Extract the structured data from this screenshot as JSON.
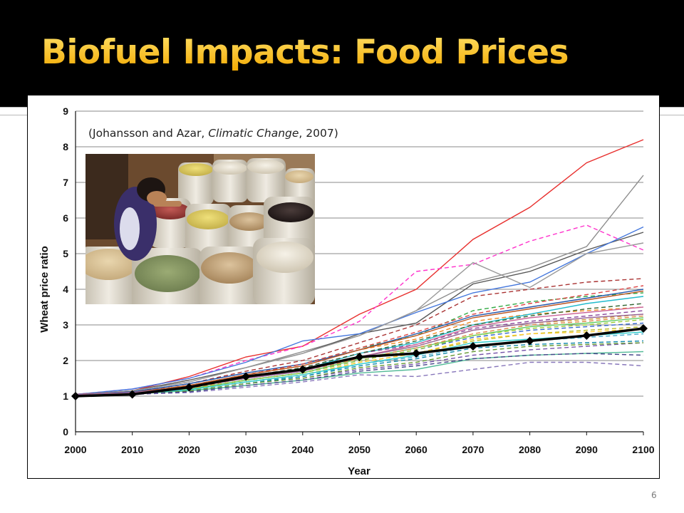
{
  "slide": {
    "title": "Biofuel Impacts: Food Prices",
    "page_number": "6",
    "citation": {
      "open": "(Johansson and Azar, ",
      "journal": "Climatic Change",
      "close": ", 2007)"
    },
    "photo_icon": "market-vendor-with-grain-sacks-photo",
    "colors": {
      "title": "#f5b800",
      "title_bar": "#000000"
    }
  },
  "chart_data": {
    "type": "line",
    "xlabel": "Year",
    "ylabel": "Wheat price ratio",
    "x": [
      2000,
      2010,
      2020,
      2030,
      2040,
      2050,
      2060,
      2070,
      2080,
      2090,
      2100
    ],
    "ylim": [
      0,
      9
    ],
    "yticks": [
      0,
      1,
      2,
      3,
      4,
      5,
      6,
      7,
      8,
      9
    ],
    "grid": true,
    "highlight_series": {
      "style": "thick black line with diamond markers",
      "values": [
        1.0,
        1.05,
        1.25,
        1.55,
        1.75,
        2.1,
        2.2,
        2.4,
        2.55,
        2.7,
        2.9
      ]
    },
    "series": [
      {
        "color": "#e8302e",
        "dash": false,
        "values": [
          1.05,
          1.15,
          1.55,
          2.1,
          2.4,
          3.3,
          4.0,
          5.4,
          6.3,
          7.55,
          8.2
        ]
      },
      {
        "color": "#8c8c8c",
        "dash": false,
        "values": [
          1.05,
          1.15,
          1.4,
          1.8,
          2.25,
          2.7,
          3.4,
          4.2,
          4.6,
          5.2,
          7.2
        ]
      },
      {
        "color": "#ff33cc",
        "dash": true,
        "values": [
          1.05,
          1.2,
          1.5,
          2.0,
          2.4,
          3.1,
          4.5,
          4.7,
          5.35,
          5.8,
          5.1
        ]
      },
      {
        "color": "#555555",
        "dash": false,
        "values": [
          1.05,
          1.15,
          1.45,
          1.8,
          2.2,
          2.75,
          3.05,
          4.15,
          4.5,
          5.1,
          5.6
        ]
      },
      {
        "color": "#4477dd",
        "dash": false,
        "values": [
          1.05,
          1.2,
          1.5,
          1.95,
          2.55,
          2.75,
          3.35,
          3.9,
          4.2,
          5.0,
          5.75
        ]
      },
      {
        "color": "#999999",
        "dash": false,
        "values": [
          1.05,
          1.15,
          1.4,
          1.8,
          2.2,
          2.7,
          3.4,
          4.75,
          4.05,
          5.0,
          5.3
        ]
      },
      {
        "color": "#aa3333",
        "dash": true,
        "values": [
          1.05,
          1.12,
          1.35,
          1.7,
          2.0,
          2.5,
          3.0,
          3.8,
          4.0,
          4.2,
          4.3
        ]
      },
      {
        "color": "#33aa44",
        "dash": true,
        "values": [
          1.05,
          1.1,
          1.3,
          1.6,
          1.9,
          2.35,
          2.7,
          3.4,
          3.65,
          3.8,
          3.9
        ]
      },
      {
        "color": "#2255aa",
        "dash": false,
        "values": [
          1.05,
          1.12,
          1.35,
          1.65,
          1.9,
          2.3,
          2.75,
          3.25,
          3.5,
          3.75,
          4.0
        ]
      },
      {
        "color": "#ee8822",
        "dash": true,
        "values": [
          1.05,
          1.1,
          1.3,
          1.6,
          1.85,
          2.3,
          2.6,
          3.1,
          3.3,
          3.4,
          3.5
        ]
      },
      {
        "color": "#22bbcc",
        "dash": false,
        "values": [
          1.05,
          1.1,
          1.25,
          1.55,
          1.75,
          2.2,
          2.5,
          3.0,
          3.3,
          3.6,
          3.8
        ]
      },
      {
        "color": "#884499",
        "dash": true,
        "values": [
          1.05,
          1.1,
          1.25,
          1.55,
          1.8,
          2.2,
          2.45,
          2.9,
          3.1,
          3.25,
          3.4
        ]
      },
      {
        "color": "#cc9933",
        "dash": true,
        "values": [
          1.05,
          1.1,
          1.25,
          1.5,
          1.75,
          2.1,
          2.4,
          2.85,
          3.05,
          3.15,
          3.3
        ]
      },
      {
        "color": "#66cc66",
        "dash": false,
        "values": [
          1.05,
          1.08,
          1.2,
          1.45,
          1.65,
          2.05,
          2.35,
          2.7,
          2.95,
          3.05,
          3.2
        ]
      },
      {
        "color": "#3366cc",
        "dash": true,
        "values": [
          1.05,
          1.08,
          1.2,
          1.45,
          1.65,
          2.0,
          2.3,
          2.65,
          2.85,
          2.95,
          3.05
        ]
      },
      {
        "color": "#dd4444",
        "dash": true,
        "values": [
          1.05,
          1.1,
          1.3,
          1.6,
          1.9,
          2.35,
          2.8,
          3.3,
          3.6,
          3.85,
          4.1
        ]
      },
      {
        "color": "#bbbb22",
        "dash": true,
        "values": [
          1.05,
          1.08,
          1.2,
          1.4,
          1.6,
          1.95,
          2.2,
          2.55,
          2.75,
          2.85,
          2.95
        ]
      },
      {
        "color": "#44aacc",
        "dash": true,
        "values": [
          1.05,
          1.08,
          1.2,
          1.4,
          1.55,
          1.9,
          2.1,
          2.4,
          2.55,
          2.65,
          2.75
        ]
      },
      {
        "color": "#7755aa",
        "dash": true,
        "values": [
          1.05,
          1.06,
          1.15,
          1.35,
          1.5,
          1.75,
          1.9,
          2.15,
          2.3,
          2.4,
          2.5
        ]
      },
      {
        "color": "#55bb99",
        "dash": false,
        "values": [
          1.05,
          1.06,
          1.15,
          1.3,
          1.45,
          1.65,
          1.75,
          2.05,
          2.15,
          2.2,
          2.25
        ]
      },
      {
        "color": "#8877bb",
        "dash": true,
        "values": [
          1.05,
          1.05,
          1.1,
          1.25,
          1.4,
          1.6,
          1.55,
          1.75,
          1.95,
          1.95,
          1.85
        ]
      },
      {
        "color": "#336633",
        "dash": true,
        "values": [
          1.05,
          1.08,
          1.25,
          1.55,
          1.8,
          2.2,
          2.55,
          3.0,
          3.25,
          3.45,
          3.6
        ]
      },
      {
        "color": "#cc6699",
        "dash": false,
        "values": [
          1.05,
          1.1,
          1.25,
          1.5,
          1.7,
          2.1,
          2.45,
          2.95,
          3.2,
          3.35,
          3.5
        ]
      },
      {
        "color": "#99cc33",
        "dash": true,
        "values": [
          1.05,
          1.08,
          1.2,
          1.45,
          1.65,
          2.0,
          2.3,
          2.7,
          2.9,
          3.0,
          3.15
        ]
      },
      {
        "color": "#1188aa",
        "dash": true,
        "values": [
          1.05,
          1.07,
          1.15,
          1.35,
          1.55,
          1.85,
          2.05,
          2.35,
          2.45,
          2.5,
          2.55
        ]
      },
      {
        "color": "#bb5522",
        "dash": false,
        "values": [
          1.05,
          1.1,
          1.3,
          1.6,
          1.85,
          2.3,
          2.7,
          3.2,
          3.45,
          3.7,
          3.95
        ]
      },
      {
        "color": "#ffcc33",
        "dash": true,
        "values": [
          1.05,
          1.07,
          1.18,
          1.4,
          1.6,
          1.95,
          2.2,
          2.6,
          2.75,
          2.8,
          2.9
        ]
      },
      {
        "color": "#669933",
        "dash": true,
        "values": [
          1.05,
          1.06,
          1.15,
          1.35,
          1.5,
          1.8,
          1.95,
          2.25,
          2.4,
          2.45,
          2.5
        ]
      },
      {
        "color": "#444488",
        "dash": true,
        "values": [
          1.05,
          1.06,
          1.12,
          1.3,
          1.45,
          1.7,
          1.85,
          2.05,
          2.15,
          2.2,
          2.15
        ]
      },
      {
        "color": "#33cccc",
        "dash": false,
        "values": [
          1.05,
          1.07,
          1.18,
          1.4,
          1.6,
          1.9,
          2.15,
          2.5,
          2.6,
          2.7,
          2.8
        ]
      },
      {
        "color": "#dd8844",
        "dash": true,
        "values": [
          1.05,
          1.08,
          1.22,
          1.5,
          1.7,
          2.05,
          2.35,
          2.75,
          3.0,
          3.1,
          3.25
        ]
      },
      {
        "color": "#996699",
        "dash": false,
        "values": [
          1.05,
          1.1,
          1.25,
          1.5,
          1.7,
          2.1,
          2.4,
          2.85,
          3.05,
          3.2,
          3.3
        ]
      }
    ]
  }
}
